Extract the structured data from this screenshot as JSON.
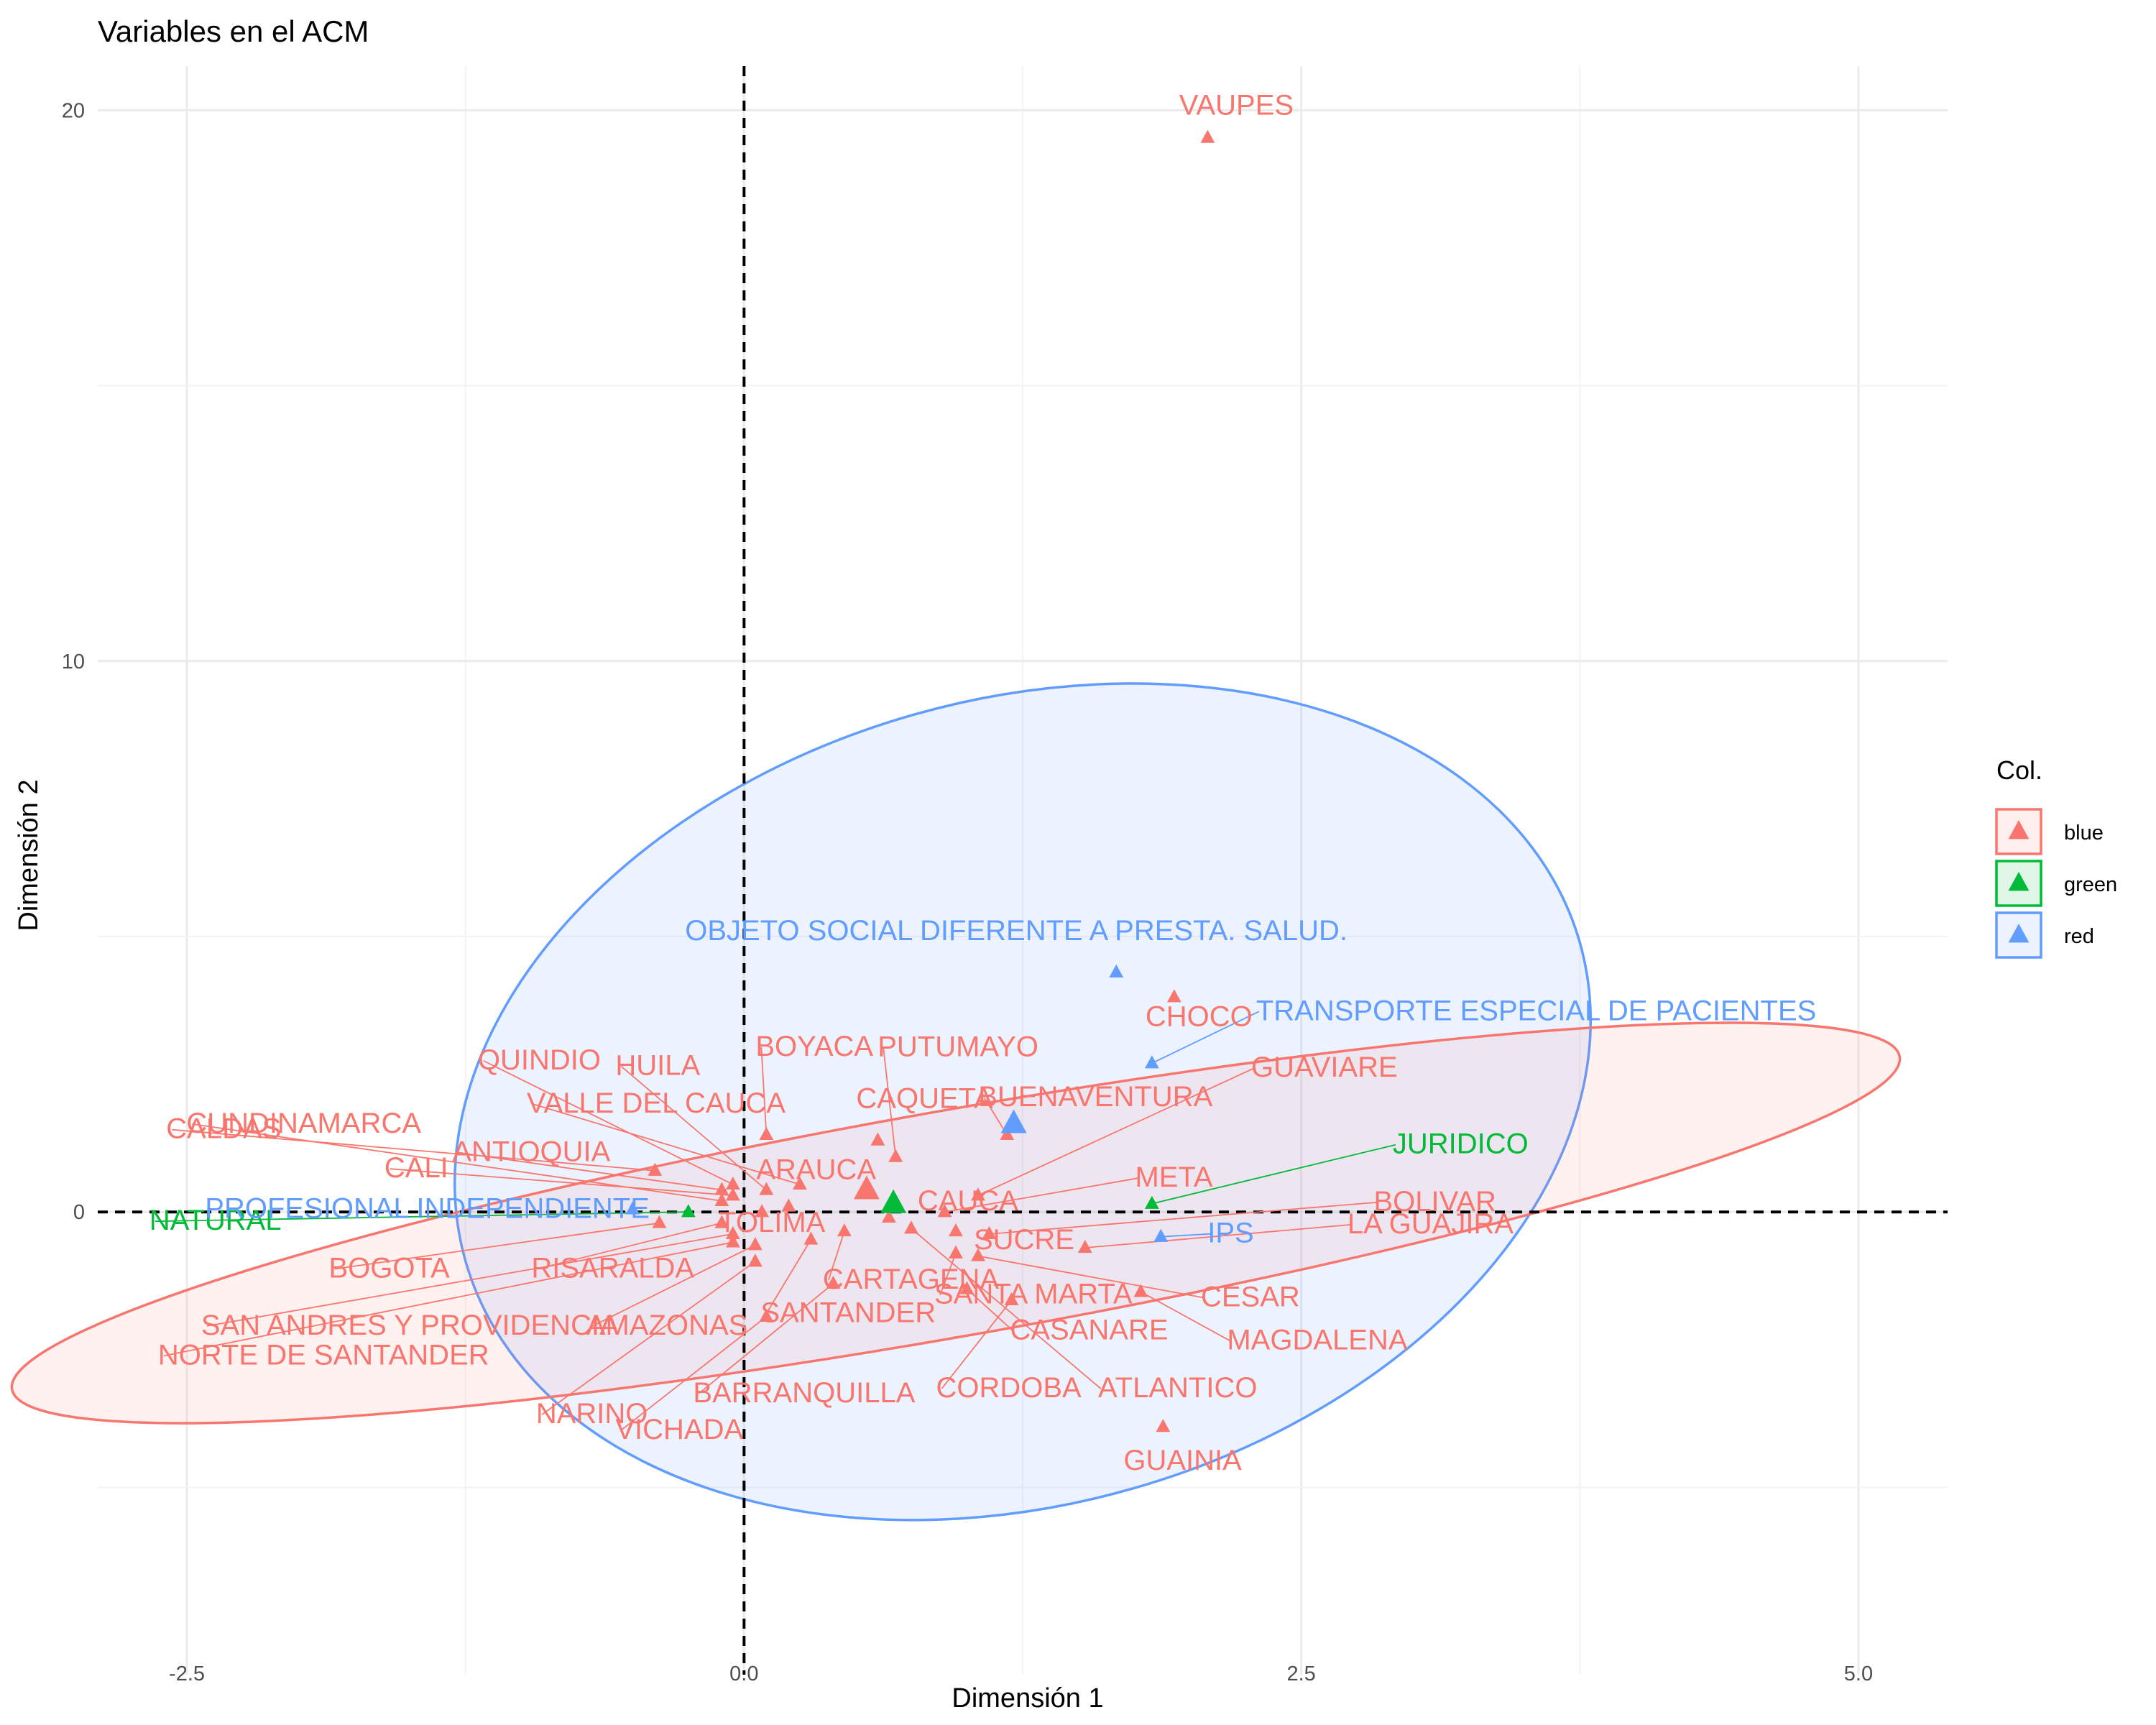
{
  "chart_data": {
    "type": "scatter",
    "title": "Variables en el ACM",
    "xlabel": "Dimensión 1",
    "ylabel": "Dimensión 2",
    "xlim": [
      -2.9,
      5.4
    ],
    "ylim": [
      -8.4,
      20.8
    ],
    "x_ticks": [
      -2.5,
      0.0,
      2.5,
      5.0
    ],
    "x_tick_labels": [
      "-2.5",
      "0.0",
      "2.5",
      "5.0"
    ],
    "y_ticks": [
      0,
      10,
      20
    ],
    "y_tick_labels": [
      "0",
      "10",
      "20"
    ],
    "grid": true,
    "reference_lines": {
      "x": 0,
      "y": 0,
      "style": "dashed"
    },
    "legend": {
      "title": "Col.",
      "position": "right",
      "items": [
        {
          "label": "blue",
          "color": "#F8766D"
        },
        {
          "label": "green",
          "color": "#00BA38"
        },
        {
          "label": "red",
          "color": "#619CFF"
        }
      ]
    },
    "colors": {
      "blue": "#F8766D",
      "green": "#00BA38",
      "red": "#619CFF"
    },
    "ellipses": [
      {
        "group": "red",
        "center": [
          1.25,
          2.0
        ],
        "radii": [
          2.6,
          7.3
        ],
        "rotation_deg": -16,
        "fill_opacity": 0.12
      },
      {
        "group": "blue",
        "center": [
          0.95,
          -0.2
        ],
        "radii": [
          4.3,
          2.05
        ],
        "rotation_deg": -10,
        "fill_opacity": 0.1
      }
    ],
    "series": [
      {
        "name": "blue",
        "points": [
          {
            "label": "VAUPES",
            "x": 2.08,
            "y": 19.5
          },
          {
            "label": "CHOCO",
            "x": 1.93,
            "y": 3.9
          },
          {
            "label": "QUINDIO",
            "x": -0.05,
            "y": 0.5
          },
          {
            "label": "HUILA",
            "x": 0.1,
            "y": 0.4
          },
          {
            "label": "BOYACA",
            "x": 0.1,
            "y": 1.4
          },
          {
            "label": "PUTUMAYO",
            "x": 0.68,
            "y": 1.0
          },
          {
            "label": "VALLE DEL CAUCA",
            "x": 0.25,
            "y": 0.5
          },
          {
            "label": "CAQUETA",
            "x": 0.6,
            "y": 1.3
          },
          {
            "label": "BUENAVENTURA",
            "x": 1.18,
            "y": 1.4
          },
          {
            "label": "GUAVIARE",
            "x": 1.05,
            "y": 0.3
          },
          {
            "label": "CUNDINAMARCA",
            "x": -0.1,
            "y": 0.2
          },
          {
            "label": "CALDAS",
            "x": -0.4,
            "y": 0.75
          },
          {
            "label": "CALI",
            "x": -0.05,
            "y": 0.3
          },
          {
            "label": "ANTIOQUIA",
            "x": -0.1,
            "y": 0.4
          },
          {
            "label": "ARAUCA",
            "x": 0.2,
            "y": 0.1
          },
          {
            "label": "CAUCA",
            "x": 0.65,
            "y": -0.1
          },
          {
            "label": "META",
            "x": 0.9,
            "y": 0.0
          },
          {
            "label": "BOLIVAR",
            "x": 1.1,
            "y": -0.4
          },
          {
            "label": "TOLIMA",
            "x": 0.08,
            "y": 0.0
          },
          {
            "label": "SUCRE",
            "x": 0.95,
            "y": -0.35
          },
          {
            "label": "LA GUAJIRA",
            "x": 1.53,
            "y": -0.65
          },
          {
            "label": "BOGOTA",
            "x": -0.38,
            "y": -0.2
          },
          {
            "label": "RISARALDA",
            "x": -0.1,
            "y": -0.2
          },
          {
            "label": "CARTAGENA",
            "x": 0.45,
            "y": -0.35
          },
          {
            "label": "SANTA MARTA",
            "x": 0.95,
            "y": -0.75
          },
          {
            "label": "CESAR",
            "x": 1.05,
            "y": -0.8
          },
          {
            "label": "SAN ANDRES Y PROVIDENCIA",
            "x": -0.05,
            "y": -0.4
          },
          {
            "label": "AMAZONAS",
            "x": 0.05,
            "y": -0.6
          },
          {
            "label": "SANTANDER",
            "x": 0.3,
            "y": -0.5
          },
          {
            "label": "CASANARE",
            "x": 1.0,
            "y": -1.4
          },
          {
            "label": "MAGDALENA",
            "x": 1.78,
            "y": -1.45
          },
          {
            "label": "NORTE DE SANTANDER",
            "x": -0.05,
            "y": -0.55
          },
          {
            "label": "VICHADA",
            "x": 0.1,
            "y": -1.9
          },
          {
            "label": "CORDOBA",
            "x": 1.2,
            "y": -1.6
          },
          {
            "label": "ATLANTICO",
            "x": 0.75,
            "y": -0.3
          },
          {
            "label": "NARINO",
            "x": 0.05,
            "y": -0.9
          },
          {
            "label": "BARRANQUILLA",
            "x": 0.4,
            "y": -1.3
          },
          {
            "label": "GUAINIA",
            "x": 1.88,
            "y": -3.9
          }
        ],
        "mean": {
          "x": 0.55,
          "y": 0.4
        }
      },
      {
        "name": "green",
        "points": [
          {
            "label": "NATURAL",
            "x": -0.25,
            "y": 0.0
          },
          {
            "label": "JURIDICO",
            "x": 1.83,
            "y": 0.15
          }
        ],
        "mean": {
          "x": 0.67,
          "y": 0.15
        }
      },
      {
        "name": "red",
        "points": [
          {
            "label": "OBJETO SOCIAL DIFERENTE A PRESTA. SALUD.",
            "x": 1.67,
            "y": 4.35
          },
          {
            "label": "TRANSPORTE ESPECIAL DE PACIENTES",
            "x": 1.83,
            "y": 2.7
          },
          {
            "label": "PROFESIONAL INDEPENDIENTE",
            "x": -0.5,
            "y": 0.05
          },
          {
            "label": "IPS",
            "x": 1.87,
            "y": -0.45
          }
        ],
        "mean": {
          "x": 1.21,
          "y": 1.6
        }
      }
    ]
  }
}
